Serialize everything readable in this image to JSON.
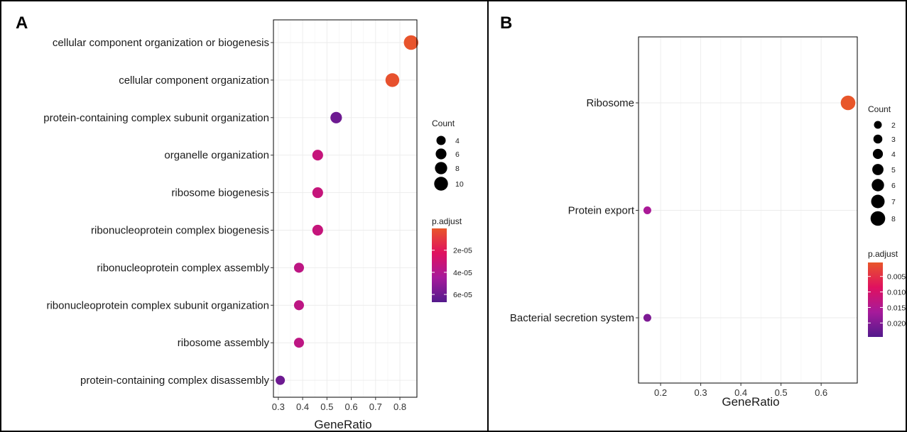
{
  "chart_data": [
    {
      "panel": "A",
      "type": "scatter",
      "xlabel": "GeneRatio",
      "ylabel": "",
      "xlim": [
        0.28,
        0.87
      ],
      "xticks": [
        0.3,
        0.4,
        0.5,
        0.6,
        0.7,
        0.8
      ],
      "grid": true,
      "categories": [
        "cellular component organization or biogenesis",
        "cellular component organization",
        "protein-containing complex subunit organization",
        "organelle organization",
        "ribosome biogenesis",
        "ribonucleoprotein complex biogenesis",
        "ribonucleoprotein complex assembly",
        "ribonucleoprotein complex subunit organization",
        "ribosome assembly",
        "protein-containing complex disassembly"
      ],
      "points": [
        {
          "category": "cellular component organization or biogenesis",
          "x": 0.846,
          "count": 11,
          "p_adjust": 1e-06
        },
        {
          "category": "cellular component organization",
          "x": 0.769,
          "count": 10,
          "p_adjust": 2e-06
        },
        {
          "category": "protein-containing complex subunit organization",
          "x": 0.538,
          "count": 7,
          "p_adjust": 6e-05
        },
        {
          "category": "organelle organization",
          "x": 0.462,
          "count": 6,
          "p_adjust": 3.3e-05
        },
        {
          "category": "ribosome biogenesis",
          "x": 0.462,
          "count": 6,
          "p_adjust": 3.3e-05
        },
        {
          "category": "ribonucleoprotein complex biogenesis",
          "x": 0.462,
          "count": 6,
          "p_adjust": 3.3e-05
        },
        {
          "category": "ribonucleoprotein complex assembly",
          "x": 0.385,
          "count": 5,
          "p_adjust": 3.6e-05
        },
        {
          "category": "ribonucleoprotein complex subunit organization",
          "x": 0.385,
          "count": 5,
          "p_adjust": 3.6e-05
        },
        {
          "category": "ribosome assembly",
          "x": 0.385,
          "count": 5,
          "p_adjust": 3.6e-05
        },
        {
          "category": "protein-containing complex disassembly",
          "x": 0.308,
          "count": 4,
          "p_adjust": 6e-05
        }
      ],
      "legend_count": {
        "title": "Count",
        "values": [
          4,
          6,
          8,
          10
        ],
        "labels": [
          "4",
          "6",
          "8",
          "10"
        ]
      },
      "legend_color": {
        "title": "p.adjust",
        "domain": [
          3e-07,
          6.7e-05
        ],
        "ticks": [
          2e-05,
          4e-05,
          6e-05
        ],
        "tick_labels": [
          "2e-05",
          "4e-05",
          "6e-05"
        ],
        "colors": [
          "#e8562a",
          "#e0115f",
          "#a61a9b",
          "#531a8c"
        ]
      }
    },
    {
      "panel": "B",
      "type": "scatter",
      "xlabel": "GeneRatio",
      "ylabel": "",
      "xlim": [
        0.145,
        0.69
      ],
      "xticks": [
        0.2,
        0.3,
        0.4,
        0.5,
        0.6
      ],
      "grid": true,
      "categories": [
        "Ribosome",
        "Protein export",
        "Bacterial secretion system"
      ],
      "points": [
        {
          "category": "Ribosome",
          "x": 0.667,
          "count": 8,
          "p_adjust": 0.0005
        },
        {
          "category": "Protein export",
          "x": 0.167,
          "count": 2,
          "p_adjust": 0.016
        },
        {
          "category": "Bacterial secretion system",
          "x": 0.167,
          "count": 2,
          "p_adjust": 0.0205
        }
      ],
      "legend_count": {
        "title": "Count",
        "values": [
          2,
          3,
          4,
          5,
          6,
          7,
          8
        ],
        "labels": [
          "2",
          "3",
          "4",
          "5",
          "6",
          "7",
          "8"
        ]
      },
      "legend_color": {
        "title": "p.adjust",
        "domain": [
          0.0005,
          0.0245
        ],
        "ticks": [
          0.005,
          0.01,
          0.015,
          0.02
        ],
        "tick_labels": [
          "0.005",
          "0.010",
          "0.015",
          "0.020"
        ],
        "colors": [
          "#e8562a",
          "#e0115f",
          "#a61a9b",
          "#531a8c"
        ]
      }
    }
  ]
}
